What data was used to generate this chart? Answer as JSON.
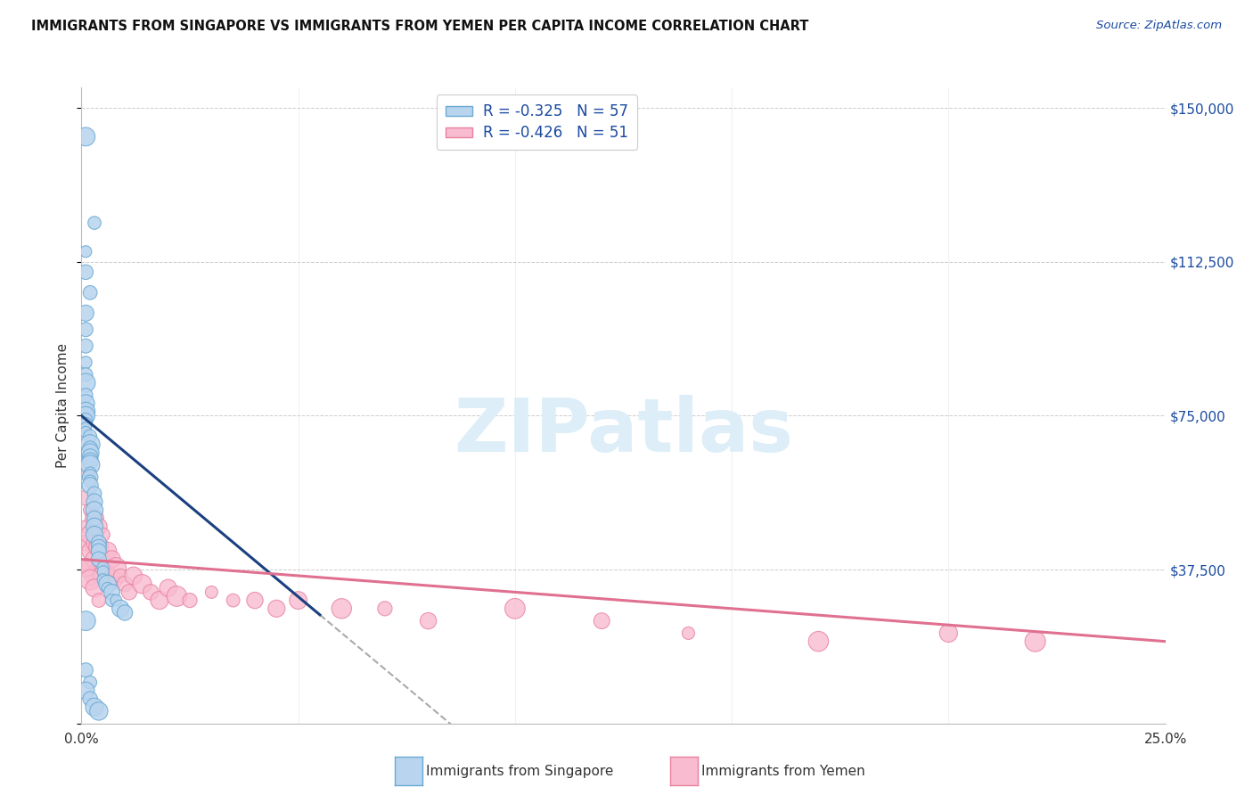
{
  "title": "IMMIGRANTS FROM SINGAPORE VS IMMIGRANTS FROM YEMEN PER CAPITA INCOME CORRELATION CHART",
  "source": "Source: ZipAtlas.com",
  "ylabel": "Per Capita Income",
  "xlim": [
    0.0,
    0.25
  ],
  "ylim": [
    0,
    155000
  ],
  "yticks": [
    0,
    37500,
    75000,
    112500,
    150000
  ],
  "ytick_labels": [
    "",
    "$37,500",
    "$75,000",
    "$112,500",
    "$150,000"
  ],
  "xticks": [
    0.0,
    0.05,
    0.1,
    0.15,
    0.2,
    0.25
  ],
  "xtick_labels": [
    "0.0%",
    "",
    "",
    "",
    "",
    "25.0%"
  ],
  "bg_color": "#ffffff",
  "grid_color": "#cccccc",
  "singapore_face": "#b8d4ee",
  "singapore_edge": "#6aaad4",
  "yemen_face": "#f8bbd0",
  "yemen_edge": "#e8829e",
  "sg_line_color": "#1a4080",
  "ye_line_color": "#e07090",
  "dash_color": "#aaaaaa",
  "legend_R_sg": "-0.325",
  "legend_N_sg": "57",
  "legend_R_ye": "-0.426",
  "legend_N_ye": "51",
  "watermark_text": "ZIPatlas",
  "watermark_color": "#ddeef8",
  "sg_label": "Immigrants from Singapore",
  "ye_label": "Immigrants from Yemen",
  "text_color": "#333333",
  "blue_label_color": "#1a4aa0",
  "sg_x": [
    0.001,
    0.003,
    0.001,
    0.001,
    0.002,
    0.001,
    0.001,
    0.001,
    0.001,
    0.001,
    0.001,
    0.001,
    0.001,
    0.001,
    0.001,
    0.001,
    0.001,
    0.001,
    0.001,
    0.002,
    0.002,
    0.002,
    0.002,
    0.002,
    0.002,
    0.002,
    0.002,
    0.002,
    0.002,
    0.002,
    0.003,
    0.003,
    0.003,
    0.003,
    0.003,
    0.003,
    0.004,
    0.004,
    0.004,
    0.004,
    0.005,
    0.005,
    0.005,
    0.006,
    0.006,
    0.007,
    0.007,
    0.008,
    0.009,
    0.01,
    0.001,
    0.001,
    0.002,
    0.001,
    0.002,
    0.003,
    0.004
  ],
  "sg_y": [
    143000,
    122000,
    115000,
    110000,
    105000,
    100000,
    96000,
    92000,
    88000,
    85000,
    83000,
    80000,
    78000,
    76000,
    75000,
    74000,
    73000,
    72000,
    71000,
    70000,
    68000,
    67000,
    66000,
    65000,
    64000,
    63000,
    61000,
    60000,
    59000,
    58000,
    56000,
    54000,
    52000,
    50000,
    48000,
    46000,
    44000,
    43000,
    42000,
    40000,
    38000,
    37000,
    35000,
    34000,
    33000,
    32000,
    30000,
    30000,
    28000,
    27000,
    25000,
    13000,
    10000,
    8000,
    6000,
    4000,
    3000
  ],
  "ye_x": [
    0.001,
    0.001,
    0.001,
    0.001,
    0.002,
    0.002,
    0.002,
    0.002,
    0.003,
    0.003,
    0.003,
    0.003,
    0.004,
    0.004,
    0.004,
    0.005,
    0.005,
    0.005,
    0.006,
    0.006,
    0.007,
    0.007,
    0.008,
    0.009,
    0.01,
    0.011,
    0.012,
    0.014,
    0.016,
    0.018,
    0.02,
    0.022,
    0.025,
    0.03,
    0.035,
    0.04,
    0.045,
    0.05,
    0.06,
    0.07,
    0.08,
    0.1,
    0.12,
    0.14,
    0.17,
    0.2,
    0.22,
    0.001,
    0.002,
    0.003,
    0.004
  ],
  "ye_y": [
    62000,
    55000,
    48000,
    44000,
    52000,
    46000,
    42000,
    38000,
    50000,
    44000,
    40000,
    36000,
    48000,
    43000,
    38000,
    46000,
    40000,
    36000,
    42000,
    37000,
    40000,
    35000,
    38000,
    36000,
    34000,
    32000,
    36000,
    34000,
    32000,
    30000,
    33000,
    31000,
    30000,
    32000,
    30000,
    30000,
    28000,
    30000,
    28000,
    28000,
    25000,
    28000,
    25000,
    22000,
    20000,
    22000,
    20000,
    38000,
    35000,
    33000,
    30000
  ]
}
